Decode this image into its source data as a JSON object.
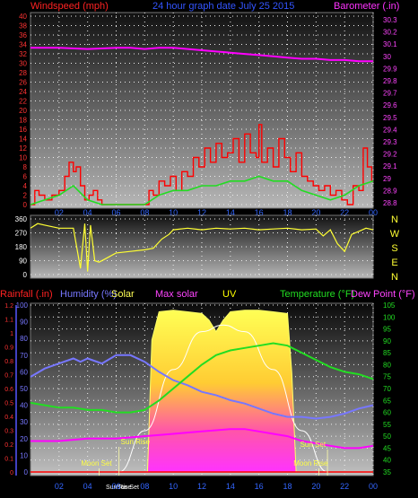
{
  "header": {
    "windspeed_label": "Windspeed (mph)",
    "title": "24 hour graph date  July 25 2015",
    "barometer_label": "Barometer (.in)"
  },
  "colors": {
    "wind": "#ff0000",
    "gust": "#22dd22",
    "barometer": "#ff00ff",
    "direction": "#ffff33",
    "humidity": "#7777ff",
    "temperature": "#22dd22",
    "dewpoint": "#ff00ff",
    "rain": "#ff0000",
    "solar": "#ffff00",
    "uv": "#ffff00",
    "axis_left_wind": "#ff3333",
    "axis_right_baro": "#ff44ff",
    "axis_rain": "#6666ff"
  },
  "chart_data": [
    {
      "type": "line",
      "name": "wind_barometer",
      "x_ticks": [
        "02",
        "04",
        "06",
        "08",
        "10",
        "12",
        "14",
        "16",
        "18",
        "20",
        "22",
        "00"
      ],
      "left_axis": {
        "label": "Windspeed (mph)",
        "ticks": [
          "0",
          "2",
          "4",
          "6",
          "8",
          "10",
          "12",
          "14",
          "16",
          "18",
          "20",
          "22",
          "24",
          "26",
          "28",
          "30",
          "32",
          "34",
          "36",
          "38",
          "40"
        ],
        "ylim": [
          0,
          40
        ]
      },
      "right_axis": {
        "label": "Barometer (.in)",
        "ticks": [
          "28.8",
          "28.9",
          "29",
          "29.1",
          "29.2",
          "29.3",
          "29.4",
          "29.5",
          "29.6",
          "29.7",
          "29.8",
          "29.9",
          "30",
          "30.1",
          "30.2",
          "30.3"
        ],
        "ylim": [
          28.8,
          30.3
        ]
      },
      "barometer": {
        "x": [
          0,
          2,
          4,
          6,
          7,
          8,
          9,
          10,
          11,
          12,
          13,
          14,
          15,
          16,
          17,
          18,
          19,
          20,
          21,
          22,
          23,
          24
        ],
        "y": [
          30.07,
          30.07,
          30.06,
          30.07,
          30.07,
          30.06,
          30.07,
          30.07,
          30.06,
          30.05,
          30.04,
          30.03,
          30.02,
          30.01,
          30.0,
          29.99,
          29.98,
          29.98,
          29.97,
          29.97,
          29.96,
          29.96
        ]
      },
      "wind_mph": {
        "x": [
          0.0,
          0.3,
          0.6,
          1.0,
          1.5,
          2.0,
          2.4,
          2.7,
          3.0,
          3.2,
          3.5,
          3.8,
          4.1,
          4.4,
          4.7,
          5.0,
          5.5,
          6.0,
          7.0,
          8.0,
          8.3,
          8.6,
          9.0,
          9.4,
          9.8,
          10.2,
          10.6,
          11.0,
          11.4,
          11.8,
          12.2,
          12.6,
          13.0,
          13.4,
          13.8,
          14.2,
          14.6,
          15.0,
          15.4,
          15.8,
          16.0,
          16.2,
          16.6,
          17.0,
          17.4,
          17.8,
          18.2,
          18.6,
          19.0,
          19.4,
          19.8,
          20.2,
          20.6,
          21.0,
          21.4,
          21.8,
          22.2,
          22.6,
          23.0,
          23.3,
          23.6,
          23.9
        ],
        "y": [
          0,
          3,
          2,
          1,
          2,
          3,
          6,
          9,
          7,
          8,
          4,
          1,
          2,
          3,
          1,
          0,
          0,
          0,
          0,
          0,
          3,
          2,
          5,
          4,
          6,
          3,
          7,
          6,
          10,
          8,
          12,
          9,
          13,
          10,
          11,
          14,
          9,
          15,
          11,
          10,
          17,
          9,
          12,
          8,
          14,
          10,
          7,
          11,
          6,
          5,
          4,
          3,
          4,
          2,
          3,
          1,
          0,
          4,
          3,
          12,
          8,
          5
        ]
      },
      "gust_mph": {
        "x": [
          0,
          1,
          2,
          3,
          4,
          5,
          6,
          7,
          8,
          9,
          10,
          11,
          12,
          13,
          14,
          15,
          16,
          17,
          18,
          19,
          20,
          21,
          22,
          23,
          24
        ],
        "y": [
          0,
          1,
          2,
          4,
          1,
          0,
          0,
          0,
          0,
          2,
          3,
          3,
          4,
          4,
          5,
          5,
          6,
          5,
          5,
          3,
          2,
          1,
          2,
          4,
          5
        ]
      }
    },
    {
      "type": "line",
      "name": "wind_direction",
      "left_ticks": [
        "360",
        "270",
        "180",
        "90",
        "0"
      ],
      "right_ticks": [
        "N",
        "W",
        "S",
        "E",
        "N"
      ],
      "ylim": [
        0,
        360
      ],
      "x": [
        0,
        0.5,
        1.0,
        2.0,
        3.0,
        3.5,
        3.8,
        4.0,
        4.2,
        4.5,
        4.8,
        5.2,
        6.0,
        7.0,
        8.0,
        8.6,
        9.2,
        9.7,
        10.0,
        11.0,
        12.0,
        13.0,
        14.0,
        15.0,
        16.0,
        17.0,
        18.0,
        19.0,
        20.0,
        20.5,
        21.0,
        21.5,
        22.0,
        22.5,
        23.0,
        23.5,
        24.0
      ],
      "y": [
        300,
        330,
        320,
        300,
        300,
        40,
        330,
        20,
        320,
        90,
        80,
        100,
        140,
        150,
        160,
        170,
        230,
        260,
        290,
        300,
        290,
        300,
        295,
        300,
        290,
        295,
        300,
        290,
        295,
        250,
        290,
        200,
        150,
        260,
        280,
        300,
        290
      ]
    },
    {
      "type": "line",
      "name": "rain_humidity_solar_uv_temperature_dewpoint",
      "legend": [
        "Rainfall (.in)",
        "Humidity (%)",
        "Solar",
        "Max solar",
        "UV",
        "Temperature (°F)",
        "Dew Point (°F)"
      ],
      "rain_ticks": [
        "0",
        "0.1",
        "0.2",
        "0.3",
        "0.4",
        "0.5",
        "0.6",
        "0.7",
        "0.8",
        "0.9",
        "1",
        "1.1",
        "1.2"
      ],
      "humidity_ticks": [
        "0",
        "10",
        "20",
        "30",
        "40",
        "50",
        "60",
        "70",
        "80",
        "90",
        "100"
      ],
      "temp_ticks": [
        "35",
        "40",
        "45",
        "50",
        "55",
        "60",
        "65",
        "70",
        "75",
        "80",
        "85",
        "90",
        "95",
        "100",
        "105"
      ],
      "temp_ylim": [
        35,
        105
      ],
      "humidity_ylim": [
        0,
        100
      ],
      "humidity": {
        "x": [
          0,
          1,
          2,
          3,
          3.5,
          4,
          5,
          6,
          7,
          8,
          9,
          10,
          11,
          12,
          13,
          14,
          15,
          16,
          17,
          18,
          19,
          20,
          21,
          22,
          23,
          24
        ],
        "y": [
          57,
          62,
          65,
          68,
          66,
          68,
          65,
          70,
          70,
          66,
          60,
          55,
          52,
          48,
          46,
          43,
          41,
          38,
          35,
          33,
          33,
          32,
          33,
          35,
          38,
          40
        ]
      },
      "temperature": {
        "x": [
          0,
          1,
          2,
          3,
          4,
          5,
          6,
          7,
          8,
          9,
          10,
          11,
          12,
          13,
          14,
          15,
          16,
          17,
          18,
          19,
          20,
          21,
          22,
          23,
          24
        ],
        "y": [
          64,
          63,
          62,
          62,
          61,
          61,
          60,
          60,
          61,
          65,
          70,
          75,
          80,
          84,
          86,
          87,
          88,
          89,
          88,
          85,
          82,
          79,
          77,
          76,
          74
        ]
      },
      "dewpoint": {
        "x": [
          0,
          2,
          4,
          6,
          8,
          10,
          12,
          14,
          15,
          16,
          17,
          18,
          19,
          20,
          21,
          22,
          23,
          24
        ],
        "y": [
          48,
          48,
          49,
          49,
          50,
          51,
          52,
          53,
          53,
          52,
          51,
          50,
          48,
          47,
          46,
          45,
          45,
          46
        ]
      },
      "solar_pct": {
        "x": [
          0,
          8.2,
          8.5,
          9.0,
          10.0,
          11.0,
          12.0,
          12.5,
          13.0,
          13.5,
          14.0,
          15.0,
          16.0,
          17.0,
          18.0,
          18.3,
          18.6,
          24
        ],
        "y": [
          0,
          0,
          80,
          97,
          98,
          97,
          96,
          92,
          85,
          92,
          97,
          98,
          98,
          97,
          96,
          60,
          0,
          0
        ]
      },
      "max_solar_pct": {
        "x": [
          6.2,
          8,
          10,
          12,
          13.5,
          15,
          17,
          19,
          20.8
        ],
        "y": [
          0,
          25,
          62,
          85,
          89,
          85,
          62,
          25,
          0
        ]
      },
      "rain": {
        "x": [
          0,
          24
        ],
        "y": [
          0,
          0
        ]
      },
      "events": [
        {
          "label": "Sun Rise",
          "hour": 6.2,
          "tag": "sun-rise"
        },
        {
          "label": "Moon Set",
          "hour": 4.8,
          "tag": "moon-set"
        },
        {
          "label": "Sun Set",
          "hour": 20.8,
          "tag": "sun-set"
        },
        {
          "label": "Moon Rise",
          "hour": 20.2,
          "tag": "moon-rise"
        }
      ],
      "bottom_markers": [
        "Sun Rise",
        "Sun Set"
      ]
    }
  ],
  "legend3": {
    "rainfall": "Rainfall (.in)",
    "humidity": "Humidity (%)",
    "solar": "Solar",
    "max_solar": "Max solar",
    "uv": "UV",
    "temperature": "Temperature (°F)",
    "dewpoint": "Dew Point (°F)"
  }
}
